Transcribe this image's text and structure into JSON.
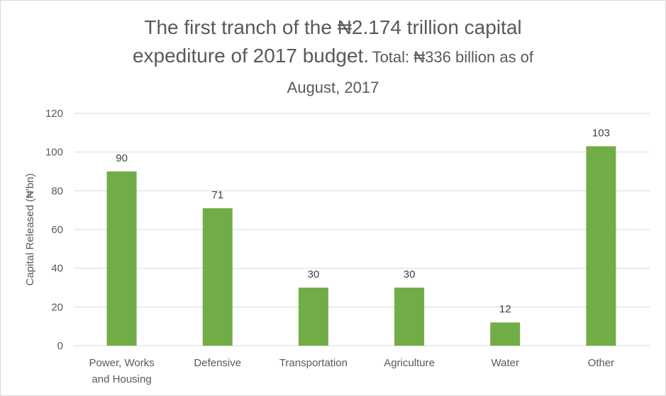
{
  "chart_data": {
    "type": "bar",
    "title_line1": "The first tranch of the ₦2.174 trillion capital",
    "title_line2_main": "expediture of 2017 budget.",
    "title_line2_sub": "Total: ₦336 billion as of",
    "title_line3": "August, 2017",
    "ylabel": "Capital Released (₦'bn)",
    "xlabel": "",
    "ylim": [
      0,
      120
    ],
    "yticks": [
      0,
      20,
      40,
      60,
      80,
      100,
      120
    ],
    "grid": true,
    "categories": [
      [
        "Power, Works",
        "and Housing"
      ],
      [
        "Defensive"
      ],
      [
        "Transportation"
      ],
      [
        "Agriculture"
      ],
      [
        "Water"
      ],
      [
        "Other"
      ]
    ],
    "values": [
      90,
      71,
      30,
      30,
      12,
      103
    ],
    "bar_color": "#70ad47",
    "gridline_color": "#d9d9d9",
    "axis_color": "#d9d9d9"
  }
}
